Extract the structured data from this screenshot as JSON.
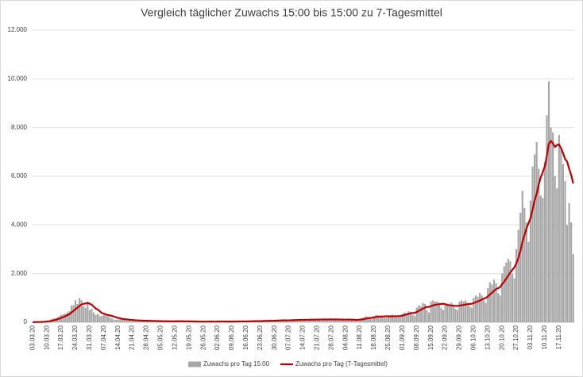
{
  "chart_data": {
    "type": "bar",
    "title": "Vergleich täglicher Zuwachs 15:00 bis 15:00 zu 7-Tagesmittel",
    "categories": [
      "03.03.20",
      null,
      null,
      null,
      null,
      null,
      null,
      "10.03.20",
      null,
      null,
      null,
      null,
      null,
      null,
      "17.03.20",
      null,
      null,
      null,
      null,
      null,
      null,
      "24.03.20",
      null,
      null,
      null,
      null,
      null,
      null,
      "31.03.20",
      null,
      null,
      null,
      null,
      null,
      null,
      "07.04.20",
      null,
      null,
      null,
      null,
      null,
      null,
      "14.04.20",
      null,
      null,
      null,
      null,
      null,
      null,
      "21.04.20",
      null,
      null,
      null,
      null,
      null,
      null,
      "28.04.20",
      null,
      null,
      null,
      null,
      null,
      null,
      "05.05.20",
      null,
      null,
      null,
      null,
      null,
      null,
      "12.05.20",
      null,
      null,
      null,
      null,
      null,
      null,
      "19.05.20",
      null,
      null,
      null,
      null,
      null,
      null,
      "26.05.20",
      null,
      null,
      null,
      null,
      null,
      null,
      "02.06.20",
      null,
      null,
      null,
      null,
      null,
      null,
      "09.06.20",
      null,
      null,
      null,
      null,
      null,
      null,
      "16.06.20",
      null,
      null,
      null,
      null,
      null,
      null,
      "23.06.20",
      null,
      null,
      null,
      null,
      null,
      null,
      "30.06.20",
      null,
      null,
      null,
      null,
      null,
      null,
      "07.07.20",
      null,
      null,
      null,
      null,
      null,
      null,
      "14.07.20",
      null,
      null,
      null,
      null,
      null,
      null,
      "21.07.20",
      null,
      null,
      null,
      null,
      null,
      null,
      "28.07.20",
      null,
      null,
      null,
      null,
      null,
      null,
      "04.08.20",
      null,
      null,
      null,
      null,
      null,
      null,
      "11.08.20",
      null,
      null,
      null,
      null,
      null,
      null,
      "18.08.20",
      null,
      null,
      null,
      null,
      null,
      null,
      "25.08.20",
      null,
      null,
      null,
      null,
      null,
      null,
      "01.09.20",
      null,
      null,
      null,
      null,
      null,
      null,
      "08.09.20",
      null,
      null,
      null,
      null,
      null,
      null,
      "15.09.20",
      null,
      null,
      null,
      null,
      null,
      null,
      "22.09.20",
      null,
      null,
      null,
      null,
      null,
      null,
      "29.09.20",
      null,
      null,
      null,
      null,
      null,
      null,
      "06.10.20",
      null,
      null,
      null,
      null,
      null,
      null,
      "13.10.20",
      null,
      null,
      null,
      null,
      null,
      null,
      "20.10.20",
      null,
      null,
      null,
      null,
      null,
      null,
      "27.10.20",
      null,
      null,
      null,
      null,
      null,
      null,
      "03.11.20",
      null,
      null,
      null,
      null,
      null,
      null,
      "10.11.20",
      null,
      null,
      null,
      null,
      null,
      null,
      "17.11.20",
      null,
      null,
      null,
      null,
      null,
      null,
      null
    ],
    "series": [
      {
        "name": "Zuwachs pro Tag 15:00",
        "type": "bar",
        "color": "#a6a6a6",
        "values": [
          6,
          6,
          20,
          15,
          30,
          20,
          50,
          60,
          70,
          120,
          150,
          160,
          200,
          250,
          300,
          330,
          350,
          400,
          450,
          680,
          700,
          900,
          750,
          1000,
          900,
          650,
          600,
          850,
          500,
          550,
          400,
          300,
          350,
          250,
          250,
          300,
          330,
          250,
          200,
          150,
          100,
          100,
          120,
          150,
          120,
          100,
          90,
          80,
          70,
          60,
          80,
          70,
          60,
          80,
          50,
          40,
          60,
          70,
          50,
          40,
          30,
          40,
          50,
          40,
          30,
          40,
          50,
          30,
          30,
          40,
          50,
          60,
          40,
          30,
          30,
          20,
          40,
          30,
          40,
          20,
          30,
          20,
          20,
          30,
          20,
          30,
          30,
          40,
          20,
          20,
          30,
          30,
          40,
          30,
          20,
          30,
          30,
          20,
          30,
          40,
          30,
          50,
          40,
          30,
          20,
          40,
          50,
          40,
          60,
          50,
          40,
          30,
          50,
          70,
          60,
          80,
          60,
          50,
          40,
          70,
          90,
          80,
          100,
          90,
          60,
          50,
          90,
          100,
          110,
          120,
          100,
          80,
          70,
          110,
          120,
          100,
          130,
          120,
          90,
          80,
          120,
          130,
          110,
          140,
          120,
          100,
          90,
          130,
          120,
          110,
          130,
          110,
          90,
          80,
          110,
          130,
          120,
          100,
          90,
          60,
          50,
          150,
          180,
          200,
          250,
          220,
          150,
          140,
          250,
          300,
          280,
          260,
          240,
          200,
          180,
          250,
          280,
          300,
          270,
          250,
          220,
          200,
          350,
          400,
          380,
          450,
          420,
          300,
          250,
          600,
          700,
          650,
          800,
          750,
          500,
          400,
          850,
          900,
          850,
          850,
          800,
          600,
          500,
          700,
          750,
          700,
          800,
          700,
          550,
          500,
          850,
          900,
          850,
          900,
          800,
          650,
          600,
          1000,
          1100,
          1050,
          1200,
          1100,
          900,
          800,
          1400,
          1650,
          1550,
          1750,
          1600,
          1200,
          1100,
          2000,
          2300,
          2450,
          2600,
          2500,
          2000,
          1800,
          3000,
          3800,
          4500,
          5400,
          4700,
          4100,
          3300,
          5000,
          6400,
          6900,
          7400,
          6300,
          5200,
          5100,
          6600,
          8500,
          9900,
          8000,
          7800,
          6000,
          5500,
          7700,
          7100,
          6500,
          5800,
          4000,
          4900,
          4100,
          2800
        ]
      },
      {
        "name": "Zuwachs pro Tag (7-Tagesmittel)",
        "type": "line",
        "color": "#c00000",
        "values": [
          5,
          6,
          8,
          10,
          14,
          16,
          21,
          28,
          38,
          55,
          75,
          95,
          115,
          145,
          180,
          215,
          250,
          290,
          330,
          400,
          460,
          540,
          600,
          670,
          730,
          760,
          770,
          790,
          760,
          720,
          640,
          560,
          520,
          450,
          380,
          350,
          320,
          300,
          280,
          260,
          230,
          200,
          180,
          160,
          140,
          130,
          120,
          110,
          100,
          95,
          85,
          80,
          75,
          70,
          65,
          60,
          60,
          60,
          58,
          55,
          52,
          50,
          48,
          45,
          42,
          40,
          40,
          40,
          38,
          37,
          38,
          40,
          40,
          40,
          40,
          38,
          38,
          36,
          34,
          32,
          30,
          28,
          27,
          27,
          26,
          25,
          26,
          28,
          28,
          27,
          27,
          28,
          29,
          30,
          30,
          29,
          28,
          28,
          28,
          29,
          30,
          32,
          34,
          35,
          34,
          35,
          37,
          38,
          41,
          44,
          45,
          44,
          46,
          49,
          52,
          56,
          58,
          60,
          59,
          62,
          66,
          70,
          74,
          78,
          78,
          77,
          80,
          82,
          86,
          90,
          92,
          95,
          96,
          98,
          101,
          100,
          102,
          105,
          106,
          107,
          109,
          111,
          112,
          114,
          114,
          115,
          116,
          117,
          115,
          115,
          113,
          112,
          111,
          110,
          108,
          109,
          110,
          106,
          103,
          98,
          94,
          108,
          115,
          127,
          148,
          165,
          175,
          185,
          200,
          217,
          230,
          232,
          235,
          242,
          244,
          244,
          241,
          244,
          246,
          247,
          250,
          253,
          270,
          300,
          320,
          345,
          370,
          380,
          385,
          420,
          470,
          510,
          560,
          600,
          630,
          630,
          660,
          690,
          720,
          730,
          740,
          750,
          760,
          740,
          720,
          700,
          690,
          680,
          670,
          670,
          680,
          700,
          710,
          730,
          740,
          750,
          760,
          790,
          820,
          850,
          890,
          930,
          970,
          1000,
          1060,
          1140,
          1210,
          1290,
          1360,
          1400,
          1440,
          1570,
          1660,
          1790,
          1910,
          2040,
          2150,
          2250,
          2420,
          2640,
          2930,
          3300,
          3580,
          3860,
          4070,
          4280,
          4630,
          5010,
          5280,
          5650,
          5950,
          6170,
          6400,
          6830,
          7330,
          7450,
          7350,
          7200,
          7280,
          7300,
          7150,
          6950,
          6700,
          6600,
          6300,
          6050,
          5700
        ]
      }
    ],
    "ylim": [
      0,
      12000
    ],
    "yticks": [
      0,
      {
        "value": 2000,
        "label": "2.000"
      },
      {
        "value": 4000,
        "label": "4.000"
      },
      {
        "value": 6000,
        "label": "6.000"
      },
      {
        "value": 8000,
        "label": "8.000"
      },
      {
        "value": 10000,
        "label": "10.000"
      },
      {
        "value": 12000,
        "label": "12.000"
      }
    ],
    "grid": true,
    "legend": "bottom"
  }
}
